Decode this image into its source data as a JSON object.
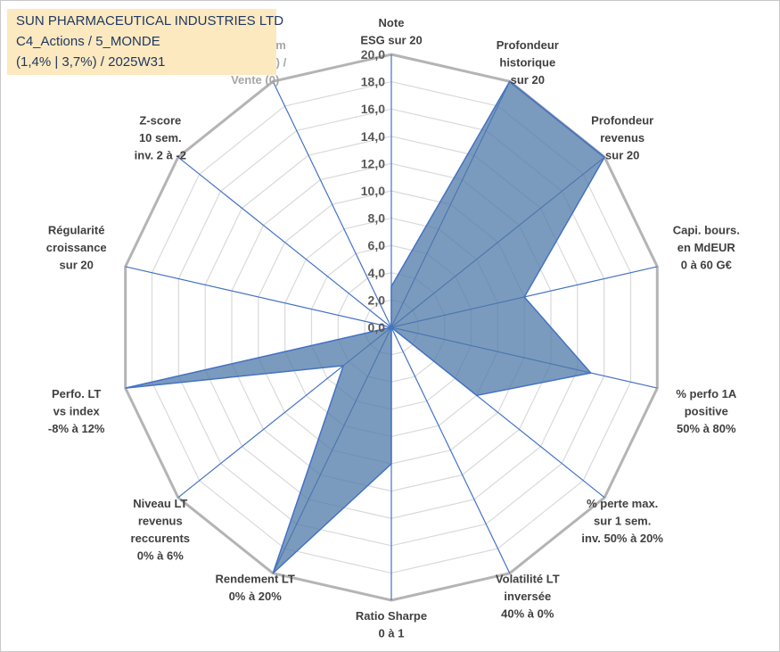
{
  "header": {
    "line1": "SUN PHARMACEUTICAL INDUSTRIES LTD",
    "line2": "C4_Actions / 5_MONDE",
    "line3": "(1,4% | 3,7%) / 2025W31"
  },
  "chart_data": {
    "type": "radar",
    "rmax": 20,
    "ticks": [
      "0,0",
      "2,0",
      "4,0",
      "6,0",
      "8,0",
      "10,0",
      "12,0",
      "14,0",
      "16,0",
      "18,0",
      "20,0"
    ],
    "axes": [
      {
        "label": [
          "Note",
          "ESG sur 20"
        ],
        "muted": false
      },
      {
        "label": [
          "Profondeur",
          "historique",
          "sur 20"
        ],
        "muted": false
      },
      {
        "label": [
          "Profondeur",
          "revenus",
          "sur 20"
        ],
        "muted": false
      },
      {
        "label": [
          "Capi. bours.",
          "en MdEUR",
          "0 à 60 G€"
        ],
        "muted": false
      },
      {
        "label": [
          "% perfo 1A",
          "positive",
          "50% à 80%"
        ],
        "muted": false
      },
      {
        "label": [
          "% perte max.",
          "sur 1 sem.",
          "inv. 50% à 20%"
        ],
        "muted": false
      },
      {
        "label": [
          "Volatilité LT",
          "inversée",
          "40% à 0%"
        ],
        "muted": false
      },
      {
        "label": [
          "Ratio Sharpe",
          "0 à 1"
        ],
        "muted": false
      },
      {
        "label": [
          "Rendement LT",
          "0% à 20%"
        ],
        "muted": false
      },
      {
        "label": [
          "Niveau LT",
          "revenus",
          "reccurents",
          "0% à 6%"
        ],
        "muted": false
      },
      {
        "label": [
          "Perfo. LT",
          "vs index",
          "-8% à 12%"
        ],
        "muted": false
      },
      {
        "label": [
          "Régularité",
          "croissance",
          "sur 20"
        ],
        "muted": false
      },
      {
        "label": [
          "Z-score",
          "10 sem.",
          "inv. 2 à -2"
        ],
        "muted": false
      },
      {
        "label": [
          "Momentum",
          "Achat (20) /",
          "Vente (0)"
        ],
        "muted": true
      }
    ],
    "series": [
      {
        "values": [
          3.0,
          20.0,
          20.0,
          10.0,
          15.0,
          8.0,
          0.0,
          10.0,
          20.0,
          4.5,
          20.0,
          0.0,
          0.0,
          0.0
        ]
      }
    ],
    "colors": {
      "fill": "#4f79a8",
      "stroke": "#4472c4",
      "grid": "#bfbfbf",
      "spoke": "#4472c4"
    }
  }
}
